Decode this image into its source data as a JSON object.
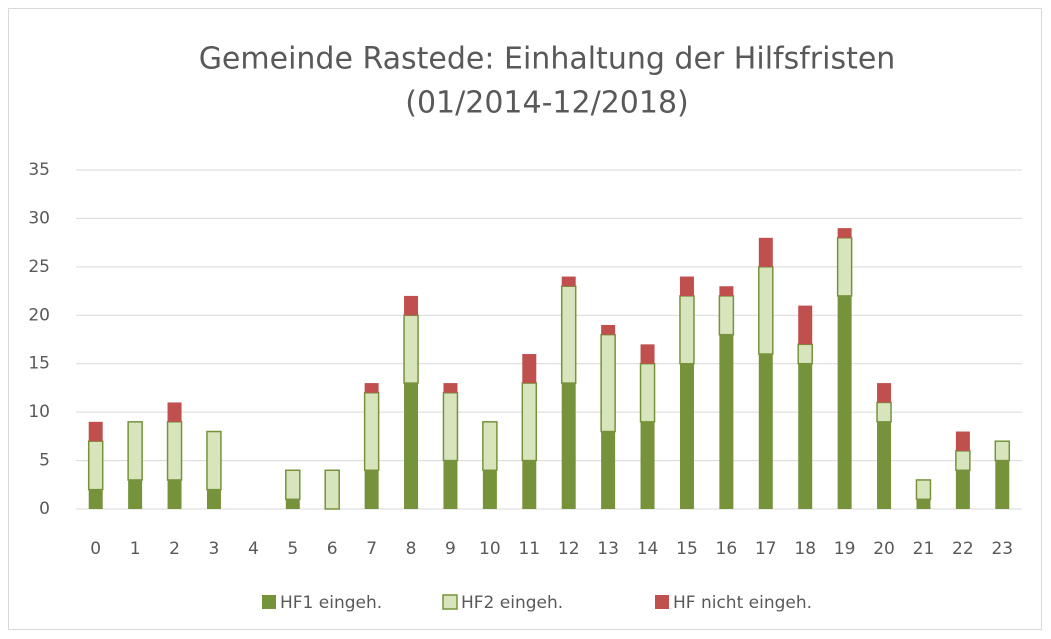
{
  "chart_data": {
    "type": "stacked_bar",
    "title": [
      "Gemeinde Rastede: Einhaltung der Hilfsfristen",
      "(01/2014-12/2018)"
    ],
    "categories": [
      "0",
      "1",
      "2",
      "3",
      "4",
      "5",
      "6",
      "7",
      "8",
      "9",
      "10",
      "11",
      "12",
      "13",
      "14",
      "15",
      "16",
      "17",
      "18",
      "19",
      "20",
      "21",
      "22",
      "23"
    ],
    "series": [
      {
        "name": "HF1 eingeh.",
        "color": "#76933c",
        "values": [
          2,
          3,
          3,
          2,
          0,
          1,
          0,
          4,
          13,
          5,
          4,
          5,
          13,
          8,
          9,
          15,
          18,
          16,
          15,
          22,
          9,
          1,
          4,
          5
        ]
      },
      {
        "name": "HF2 eingeh.",
        "color": "#d8e4bc",
        "values": [
          5,
          6,
          6,
          6,
          0,
          3,
          4,
          8,
          7,
          7,
          5,
          8,
          10,
          10,
          6,
          7,
          4,
          9,
          2,
          6,
          2,
          2,
          2,
          2
        ]
      },
      {
        "name": "HF nicht eingeh.",
        "color": "#c0504d",
        "values": [
          2,
          0,
          2,
          0,
          0,
          0,
          0,
          1,
          2,
          1,
          0,
          3,
          1,
          1,
          2,
          2,
          1,
          3,
          4,
          1,
          2,
          0,
          2,
          0
        ]
      }
    ],
    "ylim": [
      0,
      35
    ],
    "yticks": [
      0,
      5,
      10,
      15,
      20,
      25,
      30,
      35
    ],
    "grid": true,
    "legend": "bottom"
  }
}
